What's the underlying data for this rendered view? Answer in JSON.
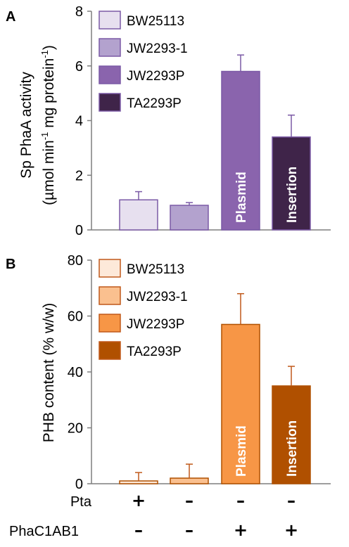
{
  "chart_data": [
    {
      "type": "bar",
      "panel": "A",
      "categories": [
        "BW25113",
        "JW2293-1",
        "JW2293P",
        "TA2293P"
      ],
      "series": [
        {
          "values": [
            1.1,
            0.9,
            5.8,
            3.4
          ],
          "errors": [
            0.3,
            0.1,
            0.6,
            0.8
          ]
        }
      ],
      "colors": [
        "#e7e0ef",
        "#b3a2ce",
        "#8a64ad",
        "#3f2449"
      ],
      "bar_labels": [
        "",
        "",
        "Plasmid",
        "Insertion"
      ],
      "ylabel_line1": "Sp PhaA activity",
      "ylabel_line2_pre": "(µmol  min",
      "ylabel_line2_sup1": "-1",
      "ylabel_line2_mid": " mg protein",
      "ylabel_line2_sup2": "-1",
      "ylabel_line2_post": ")",
      "ylim": [
        0,
        8
      ],
      "yticks": [
        "0",
        "2",
        "4",
        "6",
        "8"
      ],
      "legend_position": "top-left",
      "grid": false
    },
    {
      "type": "bar",
      "panel": "B",
      "categories": [
        "BW25113",
        "JW2293-1",
        "JW2293P",
        "TA2293P"
      ],
      "series": [
        {
          "values": [
            1,
            2,
            57,
            35
          ],
          "errors": [
            3,
            5,
            11,
            7
          ]
        }
      ],
      "colors": [
        "#fde9d9",
        "#fac08f",
        "#f79646",
        "#b05000"
      ],
      "bar_labels": [
        "",
        "",
        "Plasmid",
        "Insertion"
      ],
      "ylabel": "PHB content (% w/w)",
      "ylim": [
        0,
        80
      ],
      "yticks": [
        "0",
        "20",
        "40",
        "60",
        "80"
      ],
      "legend_position": "top-left",
      "grid": false
    }
  ],
  "genotype_table": {
    "rows": [
      {
        "label": "Pta",
        "signs": [
          "+",
          "–",
          "–",
          "–"
        ]
      },
      {
        "label": "PhaC1AB1",
        "signs": [
          "–",
          "–",
          "+",
          "+"
        ]
      }
    ]
  }
}
